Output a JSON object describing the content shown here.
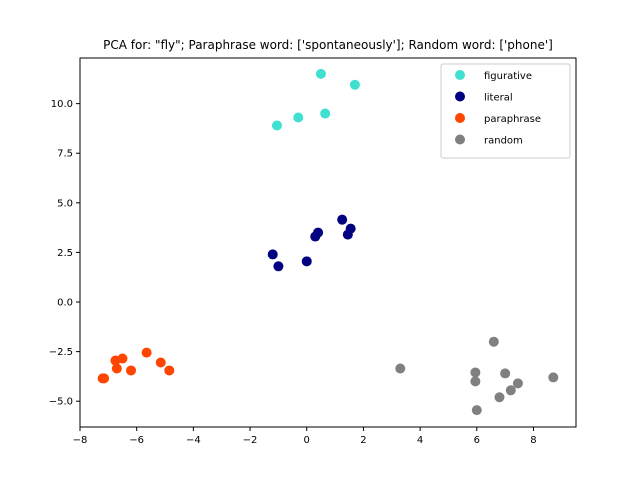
{
  "chart_data": {
    "type": "scatter",
    "title": "PCA for: \"fly\"; Paraphrase word: ['spontaneously']; Random word: ['phone']",
    "xlabel": "",
    "ylabel": "",
    "xlim": [
      -8,
      9.5
    ],
    "ylim": [
      -6.3,
      12.3
    ],
    "xticks": [
      -8,
      -6,
      -4,
      -2,
      0,
      2,
      4,
      6,
      8
    ],
    "yticks": [
      -5.0,
      -2.5,
      0.0,
      2.5,
      5.0,
      7.5,
      10.0
    ],
    "xtick_labels": [
      "−8",
      "−6",
      "−4",
      "−2",
      "0",
      "2",
      "4",
      "6",
      "8"
    ],
    "ytick_labels": [
      "−5.0",
      "−2.5",
      "0.0",
      "2.5",
      "5.0",
      "7.5",
      "10.0"
    ],
    "grid": false,
    "legend_position": "top-right",
    "series": [
      {
        "name": "figurative",
        "color": "#40e0d0",
        "points": [
          [
            -1.05,
            8.9
          ],
          [
            -0.3,
            9.3
          ],
          [
            0.5,
            11.5
          ],
          [
            0.65,
            9.5
          ],
          [
            1.7,
            10.95
          ]
        ]
      },
      {
        "name": "literal",
        "color": "#000080",
        "points": [
          [
            -1.2,
            2.4
          ],
          [
            -1.0,
            1.8
          ],
          [
            0.0,
            2.05
          ],
          [
            0.3,
            3.3
          ],
          [
            0.4,
            3.5
          ],
          [
            1.25,
            4.15
          ],
          [
            1.45,
            3.4
          ],
          [
            1.55,
            3.7
          ]
        ]
      },
      {
        "name": "paraphrase",
        "color": "#ff4500",
        "points": [
          [
            -7.2,
            -3.85
          ],
          [
            -7.15,
            -3.85
          ],
          [
            -6.75,
            -2.95
          ],
          [
            -6.7,
            -3.35
          ],
          [
            -6.5,
            -2.85
          ],
          [
            -6.2,
            -3.45
          ],
          [
            -5.65,
            -2.55
          ],
          [
            -5.15,
            -3.05
          ],
          [
            -4.85,
            -3.45
          ]
        ]
      },
      {
        "name": "random",
        "color": "#808080",
        "points": [
          [
            3.3,
            -3.35
          ],
          [
            5.95,
            -3.55
          ],
          [
            5.95,
            -4.0
          ],
          [
            6.0,
            -5.45
          ],
          [
            6.6,
            -2.0
          ],
          [
            6.8,
            -4.8
          ],
          [
            7.0,
            -3.6
          ],
          [
            7.2,
            -4.45
          ],
          [
            7.45,
            -4.1
          ],
          [
            8.7,
            -3.8
          ]
        ]
      }
    ]
  }
}
